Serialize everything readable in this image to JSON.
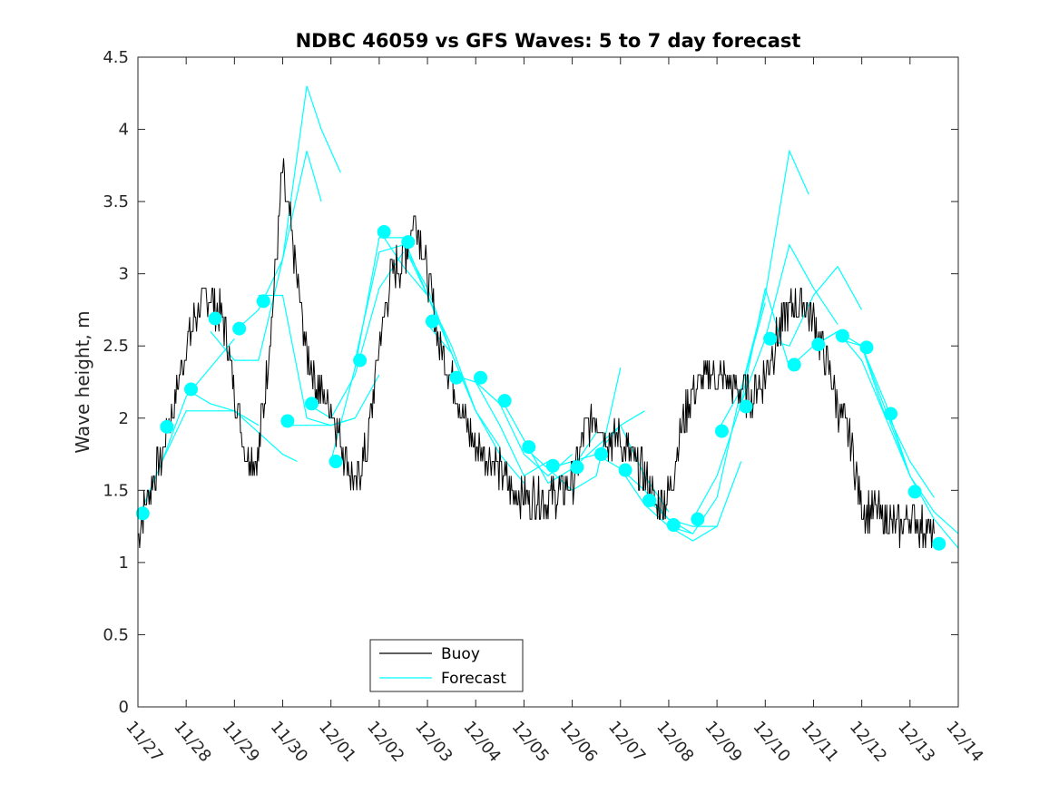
{
  "chart_data": {
    "type": "line",
    "title": "NDBC 46059 vs GFS Waves: 5 to 7 day forecast",
    "xlabel": "",
    "ylabel": "Wave height, m",
    "xlim": [
      0,
      17
    ],
    "ylim": [
      0,
      4.5
    ],
    "yticks": [
      0,
      0.5,
      1,
      1.5,
      2,
      2.5,
      3,
      3.5,
      4,
      4.5
    ],
    "ytick_labels": [
      "0",
      "0.5",
      "1",
      "1.5",
      "2",
      "2.5",
      "3",
      "3.5",
      "4",
      "4.5"
    ],
    "xticks": [
      0,
      1,
      2,
      3,
      4,
      5,
      6,
      7,
      8,
      9,
      10,
      11,
      12,
      13,
      14,
      15,
      16,
      17
    ],
    "xtick_labels": [
      "11/27",
      "11/28",
      "11/29",
      "11/30",
      "12/01",
      "12/02",
      "12/03",
      "12/04",
      "12/05",
      "12/06",
      "12/07",
      "12/08",
      "12/09",
      "12/10",
      "12/11",
      "12/12",
      "12/13",
      "12/14"
    ],
    "legend": {
      "position": "bottom-center",
      "entries": [
        "Buoy",
        "Forecast"
      ]
    },
    "colors": {
      "buoy": "#000000",
      "forecast": "#00ffff"
    },
    "buoy": {
      "name": "Buoy",
      "x": [
        0,
        0.25,
        0.5,
        0.75,
        1,
        1.25,
        1.5,
        1.75,
        2,
        2.25,
        2.5,
        2.75,
        3,
        3.25,
        3.5,
        3.75,
        4,
        4.25,
        4.5,
        4.75,
        5,
        5.25,
        5.5,
        5.75,
        6,
        6.25,
        6.5,
        6.75,
        7,
        7.25,
        7.5,
        7.75,
        8,
        8.25,
        8.5,
        8.75,
        9,
        9.25,
        9.5,
        9.75,
        10,
        10.25,
        10.5,
        10.75,
        11,
        11.25,
        11.5,
        11.75,
        12,
        12.25,
        12.5,
        12.75,
        13,
        13.25,
        13.5,
        13.75,
        14,
        14.25,
        14.5,
        14.75,
        15,
        15.25,
        15.5,
        15.75,
        16,
        16.25,
        16.5
      ],
      "y": [
        1.2,
        1.5,
        1.75,
        2.1,
        2.5,
        2.75,
        2.85,
        2.7,
        2.2,
        1.75,
        1.75,
        2.6,
        3.7,
        3.1,
        2.45,
        2.2,
        2.1,
        1.8,
        1.5,
        1.8,
        2.5,
        3.0,
        3.1,
        3.4,
        3.0,
        2.5,
        2.3,
        2.0,
        1.8,
        1.75,
        1.65,
        1.5,
        1.45,
        1.45,
        1.45,
        1.5,
        1.55,
        1.9,
        2.0,
        1.85,
        1.85,
        1.7,
        1.6,
        1.4,
        1.45,
        1.9,
        2.2,
        2.3,
        2.3,
        2.25,
        2.2,
        2.15,
        2.3,
        2.55,
        2.75,
        2.8,
        2.7,
        2.4,
        2.1,
        1.85,
        1.4,
        1.35,
        1.3,
        1.25,
        1.3,
        1.25,
        1.2
      ]
    },
    "forecast_runs": [
      {
        "x": [
          0,
          0.5,
          1,
          1.5,
          2
        ],
        "y": [
          1.3,
          1.7,
          2.15,
          2.35,
          2.55
        ]
      },
      {
        "x": [
          0.5,
          1,
          1.5,
          2,
          2.5
        ],
        "y": [
          1.7,
          2.05,
          2.05,
          2.05,
          1.95
        ]
      },
      {
        "x": [
          1,
          1.5,
          2,
          2.5,
          3,
          3.3
        ],
        "y": [
          2.2,
          2.1,
          2.05,
          1.9,
          1.75,
          1.7
        ]
      },
      {
        "x": [
          1.5,
          2,
          2.5,
          3,
          3.5,
          3.8
        ],
        "y": [
          2.6,
          2.4,
          2.4,
          3.1,
          3.85,
          3.5
        ]
      },
      {
        "x": [
          2,
          2.5,
          3,
          3.5,
          3.8,
          4.2
        ],
        "y": [
          2.6,
          2.75,
          3.1,
          4.3,
          4.0,
          3.7
        ]
      },
      {
        "x": [
          2.5,
          3,
          3.5,
          4,
          4.5
        ],
        "y": [
          2.85,
          2.85,
          2.0,
          1.95,
          2.0
        ]
      },
      {
        "x": [
          3,
          3.5,
          4,
          4.5,
          5
        ],
        "y": [
          1.95,
          1.95,
          1.95,
          2.0,
          2.3
        ]
      },
      {
        "x": [
          3.5,
          4,
          4.5,
          5,
          5.5
        ],
        "y": [
          2.1,
          2.0,
          2.3,
          2.9,
          3.15
        ]
      },
      {
        "x": [
          4,
          4.5,
          5,
          5.5,
          6
        ],
        "y": [
          1.7,
          2.35,
          3.25,
          3.25,
          2.85
        ]
      },
      {
        "x": [
          4.5,
          5,
          5.5,
          6,
          6.5
        ],
        "y": [
          2.4,
          3.15,
          3.2,
          2.9,
          2.45
        ]
      },
      {
        "x": [
          5,
          5.5,
          6,
          6.5,
          7
        ],
        "y": [
          3.3,
          3.05,
          2.85,
          2.45,
          2.05
        ]
      },
      {
        "x": [
          5.5,
          6,
          6.5,
          7,
          7.5
        ],
        "y": [
          3.2,
          2.85,
          2.5,
          2.05,
          1.8
        ]
      },
      {
        "x": [
          6,
          6.5,
          7,
          7.5,
          8
        ],
        "y": [
          2.65,
          2.45,
          2.05,
          1.75,
          1.55
        ]
      },
      {
        "x": [
          6.5,
          7,
          7.5,
          8,
          8.5
        ],
        "y": [
          2.3,
          2.25,
          1.95,
          1.6,
          1.7
        ]
      },
      {
        "x": [
          7,
          7.5,
          8,
          8.5,
          9
        ],
        "y": [
          2.25,
          2.1,
          1.75,
          1.6,
          1.75
        ]
      },
      {
        "x": [
          7.5,
          8,
          8.5,
          9,
          9.5
        ],
        "y": [
          2.15,
          1.85,
          1.55,
          1.65,
          1.9
        ]
      },
      {
        "x": [
          8,
          8.5,
          9,
          9.5,
          10
        ],
        "y": [
          1.8,
          1.65,
          1.5,
          1.6,
          2.35
        ]
      },
      {
        "x": [
          8.5,
          9,
          9.5,
          10,
          10.5
        ],
        "y": [
          1.65,
          1.7,
          1.75,
          1.95,
          2.05
        ]
      },
      {
        "x": [
          9,
          9.5,
          10,
          10.5,
          11
        ],
        "y": [
          1.65,
          1.8,
          1.95,
          1.6,
          1.35
        ]
      },
      {
        "x": [
          9.5,
          10,
          10.5,
          11,
          11.5
        ],
        "y": [
          1.75,
          1.65,
          1.5,
          1.3,
          1.2
        ]
      },
      {
        "x": [
          10,
          10.5,
          11,
          11.5,
          12
        ],
        "y": [
          1.65,
          1.4,
          1.25,
          1.15,
          1.25
        ]
      },
      {
        "x": [
          10.5,
          11,
          11.5,
          12,
          12.5
        ],
        "y": [
          1.45,
          1.3,
          1.25,
          1.25,
          1.7
        ]
      },
      {
        "x": [
          11,
          11.5,
          12,
          12.5,
          13
        ],
        "y": [
          1.25,
          1.2,
          1.45,
          2.2,
          2.8
        ]
      },
      {
        "x": [
          11.5,
          12,
          12.5,
          13,
          13.5
        ],
        "y": [
          1.3,
          1.6,
          2.1,
          2.9,
          2.35
        ]
      },
      {
        "x": [
          12,
          12.5,
          13,
          13.5,
          13.9
        ],
        "y": [
          1.9,
          2.2,
          2.85,
          3.85,
          3.55
        ]
      },
      {
        "x": [
          12.5,
          13,
          13.5,
          14,
          14.5
        ],
        "y": [
          2.1,
          2.55,
          3.2,
          2.9,
          2.65
        ]
      },
      {
        "x": [
          13,
          13.5,
          14,
          14.5,
          15
        ],
        "y": [
          2.55,
          2.5,
          2.85,
          3.05,
          2.75
        ]
      },
      {
        "x": [
          13.5,
          14,
          14.5,
          15,
          15.5
        ],
        "y": [
          2.35,
          2.5,
          2.6,
          2.4,
          2.0
        ]
      },
      {
        "x": [
          14,
          14.5,
          15,
          15.5,
          16
        ],
        "y": [
          2.5,
          2.6,
          2.5,
          2.0,
          1.6
        ]
      },
      {
        "x": [
          14.5,
          15,
          15.5,
          16,
          16.5
        ],
        "y": [
          2.55,
          2.5,
          2.05,
          1.7,
          1.45
        ]
      },
      {
        "x": [
          15,
          15.5,
          16,
          16.5,
          17
        ],
        "y": [
          2.5,
          2.1,
          1.6,
          1.35,
          1.2
        ]
      },
      {
        "x": [
          15.5,
          16,
          16.5,
          17
        ],
        "y": [
          2.05,
          1.6,
          1.3,
          1.1
        ]
      }
    ],
    "forecast_markers": {
      "x": [
        0.1,
        0.6,
        1.1,
        1.6,
        2.1,
        2.6,
        3.1,
        3.6,
        4.1,
        4.6,
        5.1,
        5.6,
        6.1,
        6.6,
        7.1,
        7.6,
        8.1,
        8.6,
        9.1,
        9.6,
        10.1,
        10.6,
        11.1,
        11.6,
        12.1,
        12.6,
        13.1,
        13.6,
        14.1,
        14.6,
        15.1,
        15.6,
        16.1,
        16.6
      ],
      "y": [
        1.34,
        1.94,
        2.2,
        2.69,
        2.62,
        2.81,
        1.98,
        2.1,
        1.7,
        2.4,
        3.29,
        3.22,
        2.67,
        2.28,
        2.28,
        2.12,
        1.8,
        1.67,
        1.66,
        1.75,
        1.64,
        1.43,
        1.26,
        1.3,
        1.91,
        2.08,
        2.55,
        2.37,
        2.51,
        2.57,
        2.49,
        2.03,
        1.49,
        1.13
      ]
    }
  }
}
